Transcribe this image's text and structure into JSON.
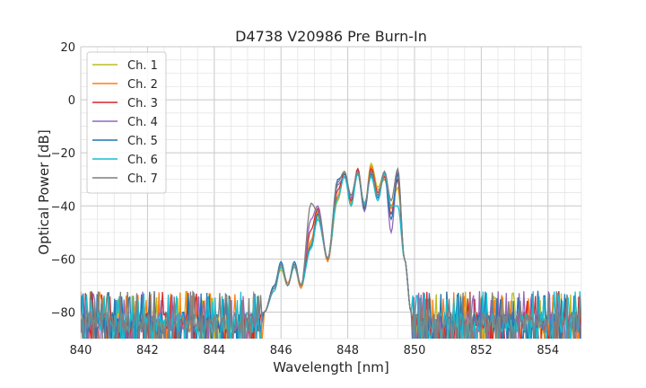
{
  "chart_data": {
    "type": "line",
    "title": "D4738 V20986 Pre Burn-In",
    "xlabel": "Wavelength [nm]",
    "ylabel": "Optical Power [dB]",
    "xlim": [
      840,
      855
    ],
    "ylim": [
      -90,
      20
    ],
    "xticks": [
      840,
      842,
      844,
      846,
      848,
      850,
      852,
      854
    ],
    "yticks": [
      -80,
      -60,
      -40,
      -20,
      0,
      20
    ],
    "grid": true,
    "legend_position": "top-left",
    "noise_floor_db": -80,
    "passband_nm": [
      846.9,
      849.8
    ],
    "series": [
      {
        "name": "Ch. 1",
        "color": "#bcbd22",
        "x": [
          845.5,
          845.8,
          846.0,
          846.2,
          846.4,
          846.6,
          846.9,
          847.1,
          847.4,
          847.7,
          847.9,
          848.1,
          848.3,
          848.5,
          848.7,
          848.9,
          849.1,
          849.3,
          849.5,
          849.7,
          849.9
        ],
        "y": [
          -80,
          -70,
          -64,
          -70,
          -62,
          -70,
          -54,
          -44,
          -60,
          -38,
          -27,
          -40,
          -26,
          -41,
          -24,
          -33,
          -28,
          -40,
          -33,
          -60,
          -80
        ]
      },
      {
        "name": "Ch. 2",
        "color": "#ff7f0e",
        "x": [
          845.5,
          845.8,
          846.0,
          846.2,
          846.4,
          846.6,
          846.9,
          847.1,
          847.4,
          847.7,
          847.9,
          848.1,
          848.3,
          848.5,
          848.7,
          848.9,
          849.1,
          849.3,
          849.5,
          849.7,
          849.9
        ],
        "y": [
          -80,
          -71,
          -62,
          -69,
          -63,
          -71,
          -53,
          -42,
          -61,
          -36,
          -27,
          -39,
          -27,
          -42,
          -25,
          -34,
          -30,
          -41,
          -30,
          -60,
          -80
        ]
      },
      {
        "name": "Ch. 3",
        "color": "#d62728",
        "x": [
          845.5,
          845.8,
          846.0,
          846.2,
          846.4,
          846.6,
          846.9,
          847.1,
          847.4,
          847.7,
          847.9,
          848.1,
          848.3,
          848.5,
          848.7,
          848.9,
          849.1,
          849.3,
          849.5,
          849.7,
          849.9
        ],
        "y": [
          -80,
          -70,
          -62,
          -70,
          -62,
          -70,
          -49,
          -41,
          -60,
          -34,
          -28,
          -38,
          -26,
          -41,
          -26,
          -35,
          -29,
          -43,
          -30,
          -60,
          -80
        ]
      },
      {
        "name": "Ch. 4",
        "color": "#9467bd",
        "x": [
          845.5,
          845.8,
          846.0,
          846.2,
          846.4,
          846.6,
          846.9,
          847.1,
          847.4,
          847.7,
          847.9,
          848.1,
          848.3,
          848.5,
          848.7,
          848.9,
          849.1,
          849.3,
          849.5,
          849.7,
          849.9
        ],
        "y": [
          -80,
          -70,
          -62,
          -70,
          -62,
          -70,
          -45,
          -40,
          -60,
          -32,
          -29,
          -37,
          -27,
          -42,
          -27,
          -36,
          -27,
          -50,
          -27,
          -60,
          -80
        ]
      },
      {
        "name": "Ch. 5",
        "color": "#1f77b4",
        "x": [
          845.5,
          845.8,
          846.0,
          846.2,
          846.4,
          846.6,
          846.9,
          847.1,
          847.4,
          847.7,
          847.9,
          848.1,
          848.3,
          848.5,
          848.7,
          848.9,
          849.1,
          849.3,
          849.5,
          849.7,
          849.9
        ],
        "y": [
          -80,
          -70,
          -61,
          -70,
          -61,
          -70,
          -55,
          -43,
          -60,
          -30,
          -28,
          -36,
          -28,
          -41,
          -28,
          -37,
          -28,
          -45,
          -28,
          -60,
          -80
        ]
      },
      {
        "name": "Ch. 6",
        "color": "#17becf",
        "x": [
          845.5,
          845.8,
          846.0,
          846.2,
          846.4,
          846.6,
          846.9,
          847.1,
          847.4,
          847.7,
          847.9,
          848.1,
          848.3,
          848.5,
          848.7,
          848.9,
          849.1,
          849.3,
          849.5,
          849.7,
          849.9
        ],
        "y": [
          -80,
          -72,
          -63,
          -70,
          -63,
          -70,
          -56,
          -45,
          -60,
          -37,
          -29,
          -40,
          -28,
          -39,
          -29,
          -38,
          -28,
          -40,
          -40,
          -60,
          -80
        ]
      },
      {
        "name": "Ch. 7",
        "color": "#7f7f7f",
        "x": [
          845.5,
          845.8,
          846.0,
          846.2,
          846.4,
          846.6,
          846.9,
          847.1,
          847.4,
          847.7,
          847.9,
          848.1,
          848.3,
          848.5,
          848.7,
          848.9,
          849.1,
          849.3,
          849.5,
          849.7,
          849.9
        ],
        "y": [
          -80,
          -71,
          -62,
          -70,
          -62,
          -70,
          -39,
          -42,
          -60,
          -31,
          -27,
          -36,
          -27,
          -40,
          -27,
          -36,
          -27,
          -38,
          -26,
          -60,
          -80
        ]
      }
    ]
  }
}
